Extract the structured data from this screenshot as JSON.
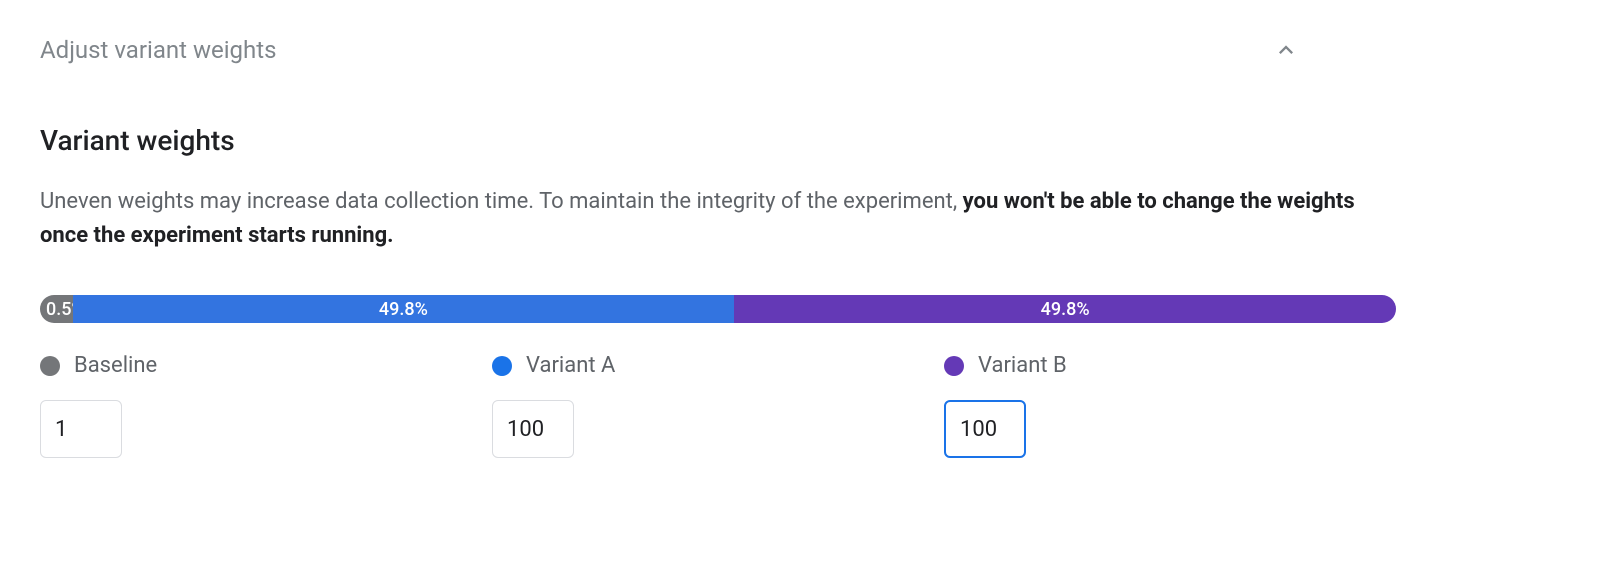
{
  "header": {
    "section_title": "Adjust variant weights"
  },
  "content": {
    "subsection_title": "Variant weights",
    "description_normal": "Uneven weights may increase data collection time. To maintain the integrity of the experiment, ",
    "description_bold": "you won't be able to change the weights once the experiment starts running."
  },
  "bar": {
    "segments": [
      {
        "percent_label": "0.5%",
        "width_pct": 2.4,
        "color": "#747679"
      },
      {
        "percent_label": "49.8%",
        "width_pct": 48.8,
        "color": "#3374e0"
      },
      {
        "percent_label": "49.8%",
        "width_pct": 48.8,
        "color": "#6439b6"
      }
    ]
  },
  "variants": [
    {
      "label": "Baseline",
      "dot_color": "#747679",
      "value": "1",
      "focused": false
    },
    {
      "label": "Variant A",
      "dot_color": "#1a73e8",
      "value": "100",
      "focused": false
    },
    {
      "label": "Variant B",
      "dot_color": "#6439b6",
      "value": "100",
      "focused": true
    }
  ],
  "colors": {
    "text_muted": "#80868b",
    "text_body": "#5f6368",
    "text_strong": "#202124",
    "border": "#dadce0",
    "focus": "#1a73e8"
  }
}
